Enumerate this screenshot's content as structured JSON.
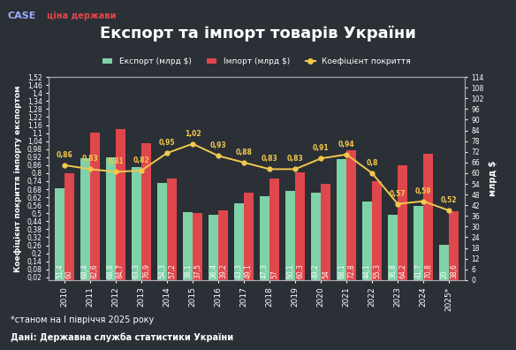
{
  "chart_data": {
    "type": "bar",
    "title": "Експорт та імпорт товарів України",
    "logos": [
      "CASE",
      "ціна держави"
    ],
    "footnote": "*станом на І півріччя 2025 року",
    "source": "Дані: Державна служба статистики України",
    "categories": [
      "2010",
      "2011",
      "2012",
      "2013",
      "2014",
      "2015",
      "2016",
      "2017",
      "2018",
      "2019",
      "2020",
      "2021",
      "2022",
      "2023",
      "2024",
      "2025*"
    ],
    "y_label": "Коефіцієнт покриття імпорту експортом",
    "y2_label": "млрд $",
    "ylim": [
      0,
      1.52
    ],
    "yticks": [
      {
        "value": 0.02,
        "label": "0,02"
      },
      {
        "value": 0.08,
        "label": "0,08"
      },
      {
        "value": 0.14,
        "label": "0,14"
      },
      {
        "value": 0.2,
        "label": "0,2"
      },
      {
        "value": 0.26,
        "label": "0,26"
      },
      {
        "value": 0.32,
        "label": "0,32"
      },
      {
        "value": 0.38,
        "label": "0,38"
      },
      {
        "value": 0.44,
        "label": "0,44"
      },
      {
        "value": 0.5,
        "label": "0,5"
      },
      {
        "value": 0.56,
        "label": "0,56"
      },
      {
        "value": 0.62,
        "label": "0,62"
      },
      {
        "value": 0.68,
        "label": "0,68"
      },
      {
        "value": 0.74,
        "label": "0,74"
      },
      {
        "value": 0.8,
        "label": "0,8"
      },
      {
        "value": 0.86,
        "label": "0,86"
      },
      {
        "value": 0.92,
        "label": "0,92"
      },
      {
        "value": 0.98,
        "label": "0,98"
      },
      {
        "value": 1.04,
        "label": "1,04"
      },
      {
        "value": 1.1,
        "label": "1,1"
      },
      {
        "value": 1.16,
        "label": "1,16"
      },
      {
        "value": 1.22,
        "label": "1,22"
      },
      {
        "value": 1.28,
        "label": "1,28"
      },
      {
        "value": 1.34,
        "label": "1,34"
      },
      {
        "value": 1.4,
        "label": "1,4"
      },
      {
        "value": 1.46,
        "label": "1,46"
      },
      {
        "value": 1.52,
        "label": "1,52"
      }
    ],
    "y2lim": [
      0,
      114
    ],
    "y2ticks": [
      0,
      6,
      12,
      18,
      24,
      30,
      36,
      42,
      48,
      54,
      60,
      66,
      72,
      78,
      84,
      90,
      96,
      102,
      108,
      114
    ],
    "grid": false,
    "legend": "upper center",
    "data_labels": true,
    "series": [
      {
        "name": "Експорт (млрд $)",
        "type": "bar",
        "axis": "y2",
        "color": "#7fd1a8",
        "values": [
          51.4,
          68.4,
          68.8,
          63.3,
          54.3,
          38.1,
          36.4,
          43.3,
          47.3,
          50.1,
          49.2,
          68.1,
          44.1,
          36.8,
          41.7,
          20
        ],
        "value_labels": [
          "51,4",
          "68,4",
          "68,8",
          "63,3",
          "54,3",
          "38,1",
          "36,4",
          "43,3",
          "47,3",
          "50,1",
          "49,2",
          "68,1",
          "44,1",
          "36,8",
          "41,7",
          "20"
        ]
      },
      {
        "name": "Імпорт (млрд $)",
        "type": "bar",
        "axis": "y2",
        "color": "#e0474c",
        "values": [
          60,
          82.6,
          84.7,
          76.9,
          57.2,
          37.5,
          39.2,
          49.1,
          57,
          60.3,
          54,
          72.8,
          55.3,
          64.2,
          70.8,
          38.6
        ],
        "value_labels": [
          "60",
          "82,6",
          "84,7",
          "76,9",
          "57,2",
          "37,5",
          "39,2",
          "49,1",
          "57",
          "60,3",
          "54",
          "72,8",
          "55,3",
          "64,2",
          "70,8",
          "38,6"
        ]
      },
      {
        "name": "Коефіцієнт покриття",
        "type": "line",
        "color": "#f2c94c",
        "marker": "o",
        "line_style": "solid",
        "values": [
          0.86,
          0.83,
          0.81,
          0.82,
          0.95,
          1.02,
          0.93,
          0.88,
          0.83,
          0.83,
          0.91,
          0.94,
          0.8,
          0.57,
          0.59,
          0.52
        ],
        "value_labels": [
          "0,86",
          "0,83",
          "0,81",
          "0,82",
          "0,95",
          "1,02",
          "0,93",
          "0,88",
          "0,83",
          "0,83",
          "0,91",
          "0,94",
          "0,8",
          "0,57",
          "0,59",
          "0,52"
        ]
      }
    ]
  }
}
